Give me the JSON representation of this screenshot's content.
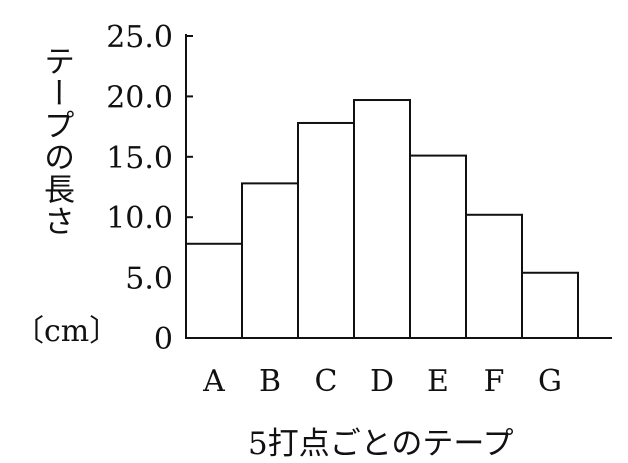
{
  "chart_data": {
    "type": "bar",
    "categories": [
      "A",
      "B",
      "C",
      "D",
      "E",
      "F",
      "G"
    ],
    "values": [
      7.8,
      12.8,
      17.8,
      19.7,
      15.1,
      10.2,
      5.4
    ],
    "ylabel": "テープの長さ",
    "ylabel_unit": "〔cm〕",
    "xlabel": "5打点ごとのテープ",
    "ylim": [
      0,
      25
    ],
    "yticks": [
      "0",
      "5.0",
      "10.0",
      "15.0",
      "20.0",
      "25.0"
    ],
    "grid": false,
    "colors": {
      "bar_fill": "#ffffff",
      "bar_stroke": "#111111",
      "axis": "#111111"
    }
  }
}
